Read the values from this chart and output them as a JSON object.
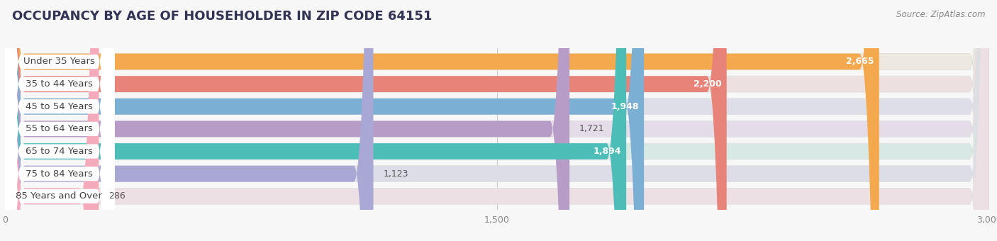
{
  "title": "OCCUPANCY BY AGE OF HOUSEHOLDER IN ZIP CODE 64151",
  "source": "Source: ZipAtlas.com",
  "categories": [
    "Under 35 Years",
    "35 to 44 Years",
    "45 to 54 Years",
    "55 to 64 Years",
    "65 to 74 Years",
    "75 to 84 Years",
    "85 Years and Over"
  ],
  "values": [
    2665,
    2200,
    1948,
    1721,
    1894,
    1123,
    286
  ],
  "bar_colors": [
    "#F5A94E",
    "#E8837A",
    "#7BAFD4",
    "#B89CC8",
    "#4DBDB8",
    "#A9A8D4",
    "#F4AABB"
  ],
  "bar_bg_colors": [
    "#EDE8E0",
    "#EDE0E0",
    "#DDDEE8",
    "#E4DDE8",
    "#D8E8E4",
    "#DDDDE8",
    "#EDE0E4"
  ],
  "label_bg_color": "#FFFFFF",
  "xlim": [
    0,
    3000
  ],
  "xticks": [
    0,
    1500,
    3000
  ],
  "background_color": "#f7f7f7",
  "title_fontsize": 13,
  "label_fontsize": 9.5,
  "value_fontsize": 9,
  "value_inside_threshold": 1800
}
